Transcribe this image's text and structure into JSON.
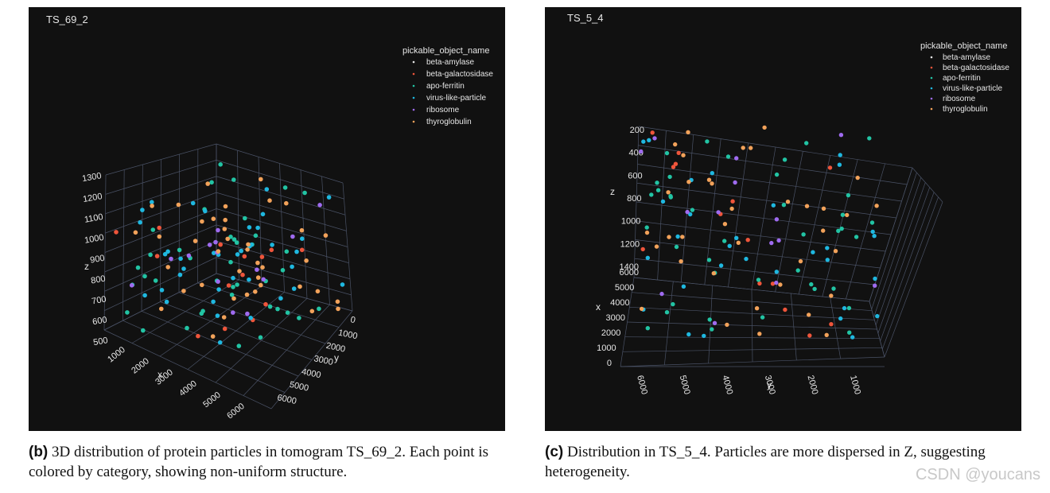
{
  "chart_data": [
    {
      "type": "scatter",
      "title": "TS_69_2",
      "legend_title": "pickable_object_name",
      "legend_placement": "top-right",
      "series": [
        {
          "name": "beta-amylase",
          "color": "#e5e5e5",
          "count": 0
        },
        {
          "name": "beta-galactosidase",
          "color": "#ef553b",
          "count": 14
        },
        {
          "name": "apo-ferritin",
          "color": "#22c4a4",
          "count": 40
        },
        {
          "name": "virus-like-particle",
          "color": "#1fb8e0",
          "count": 38
        },
        {
          "name": "ribosome",
          "color": "#9f6bf0",
          "count": 14
        },
        {
          "name": "thyroglobulin",
          "color": "#f2a25a",
          "count": 40
        }
      ],
      "axes": {
        "x": {
          "label": "x",
          "ticks": [
            "1000",
            "2000",
            "3000",
            "4000",
            "5000",
            "6000"
          ],
          "range": [
            0,
            6300
          ]
        },
        "y": {
          "label": "y",
          "ticks": [
            "0",
            "1000",
            "2000",
            "3000",
            "4000",
            "5000",
            "6000"
          ],
          "range": [
            0,
            6300
          ]
        },
        "z": {
          "label": "z",
          "ticks": [
            "500",
            "600",
            "700",
            "800",
            "900",
            "1000",
            "1100",
            "1200",
            "1300"
          ],
          "range": [
            500,
            1350
          ]
        }
      }
    },
    {
      "type": "scatter",
      "title": "TS_5_4",
      "legend_title": "pickable_object_name",
      "legend_placement": "top-right",
      "series": [
        {
          "name": "beta-amylase",
          "color": "#e5e5e5",
          "count": 0
        },
        {
          "name": "beta-galactosidase",
          "color": "#ef553b",
          "count": 14
        },
        {
          "name": "apo-ferritin",
          "color": "#22c4a4",
          "count": 40
        },
        {
          "name": "virus-like-particle",
          "color": "#1fb8e0",
          "count": 30
        },
        {
          "name": "ribosome",
          "color": "#9f6bf0",
          "count": 14
        },
        {
          "name": "thyroglobulin",
          "color": "#f2a25a",
          "count": 36
        }
      ],
      "axes": {
        "z": {
          "label": "z",
          "ticks": [
            "200",
            "400",
            "600",
            "800",
            "1000",
            "1200",
            "1400"
          ],
          "range": [
            200,
            1400
          ]
        },
        "x": {
          "label": "x",
          "ticks": [
            "0",
            "1000",
            "2000",
            "3000",
            "4000",
            "5000",
            "6000"
          ],
          "range": [
            0,
            6000
          ]
        },
        "y": {
          "label": "y",
          "ticks": [
            "6000",
            "5000",
            "4000",
            "3000",
            "2000",
            "1000"
          ],
          "range": [
            0,
            6000
          ]
        }
      }
    }
  ],
  "captions": {
    "b_label": "(b)",
    "b_text": " 3D distribution of protein particles in tomogram TS_69_2. Each point is colored by category, showing non-uniform structure.",
    "c_label": "(c)",
    "c_text": " Distribution in TS_5_4. Particles are more dispersed in Z, suggesting heterogeneity."
  },
  "watermark": "CSDN @youcans"
}
